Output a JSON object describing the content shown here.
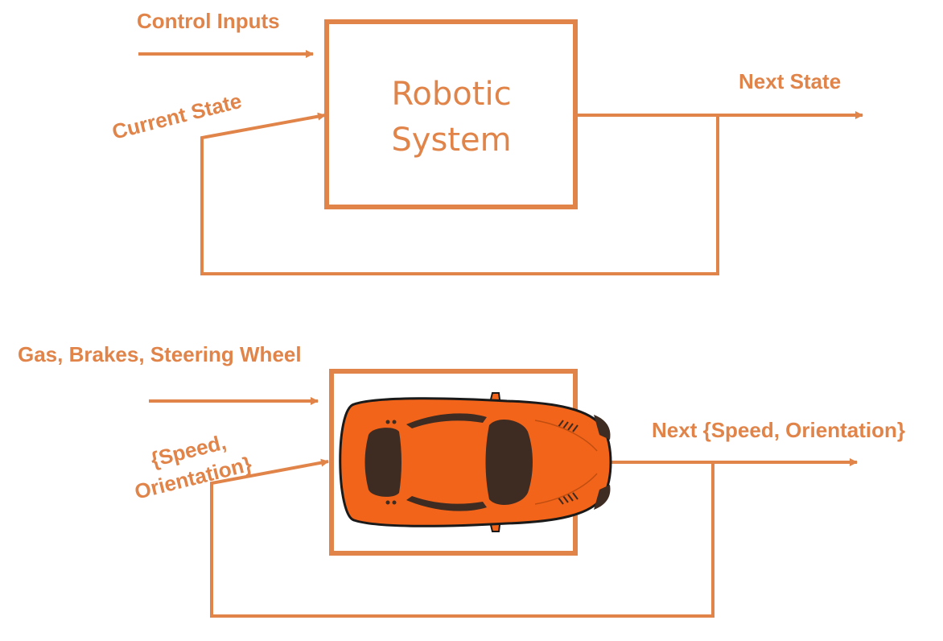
{
  "colors": {
    "accent": "#E0844A",
    "car_body": "#F26419",
    "car_glass": "#3E2B22",
    "car_outline": "#1A1A1A"
  },
  "top_diagram": {
    "input_label": "Control Inputs",
    "feedback_label": "Current State",
    "output_label": "Next State",
    "block_label_line1": "Robotic",
    "block_label_line2": "System"
  },
  "bottom_diagram": {
    "input_label": "Gas, Brakes, Steering Wheel",
    "feedback_label_line1": "{Speed,",
    "feedback_label_line2": "Orientation}",
    "output_label": "Next {Speed, Orientation}",
    "block_icon": "race-car-icon"
  }
}
